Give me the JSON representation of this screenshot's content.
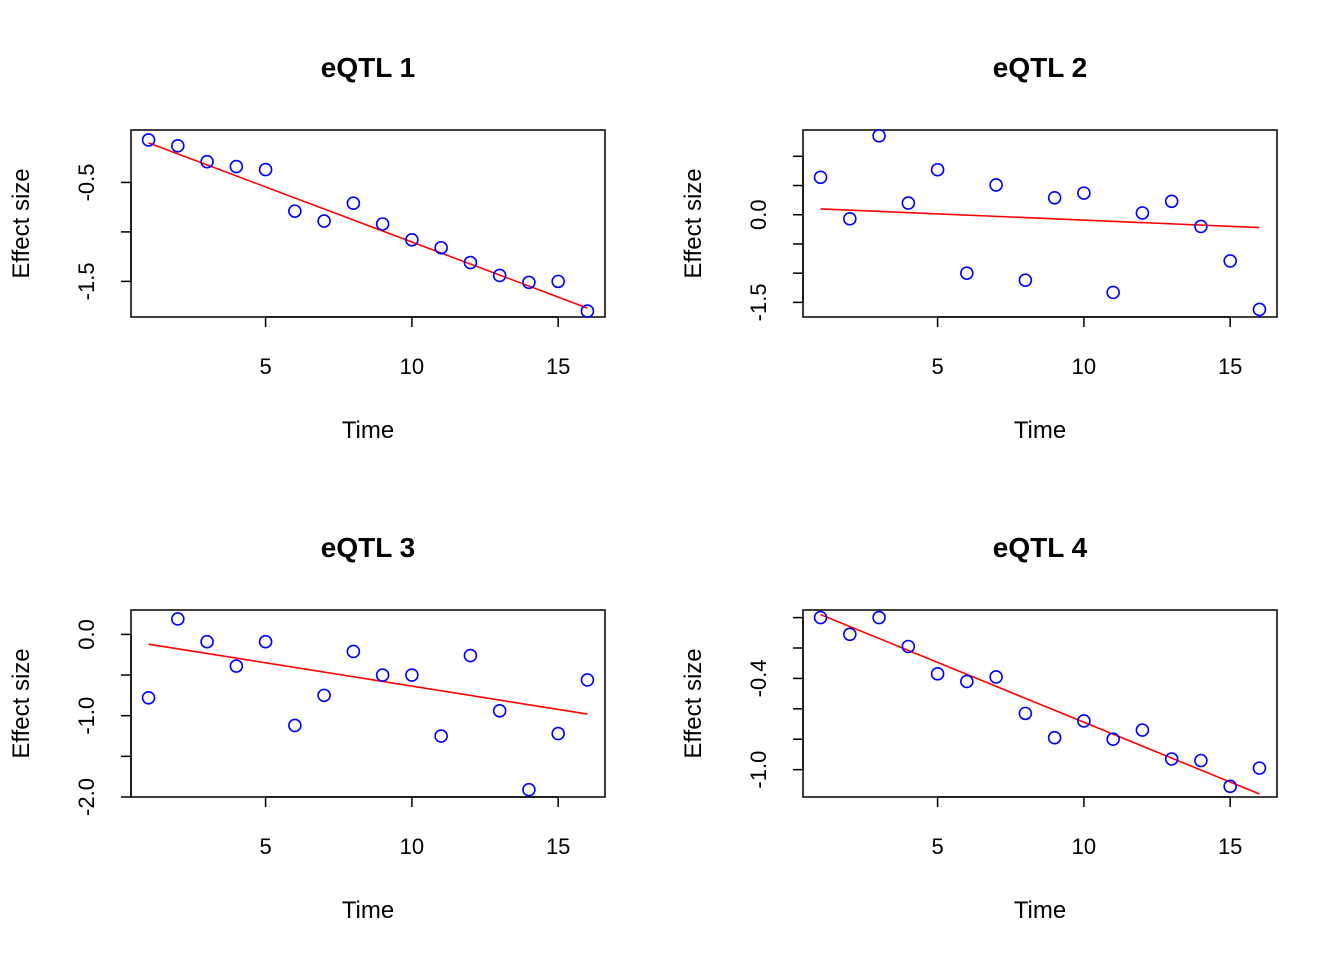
{
  "colors": {
    "points": "#0000ff",
    "fit_line": "#ff0000",
    "axes": "#000000"
  },
  "chart_data": [
    {
      "type": "scatter",
      "title": "eQTL 1",
      "xlabel": "Time",
      "ylabel": "Effect size",
      "xlim": [
        0.4,
        16.6
      ],
      "ylim": [
        -1.86,
        0.03
      ],
      "xticks": [
        5,
        10,
        15
      ],
      "xtick_labels": [
        "5",
        "10",
        "15"
      ],
      "yticks": [
        -0.5,
        -1.0,
        -1.5
      ],
      "ytick_labels": [
        "-0.5",
        "",
        "-1.5"
      ],
      "x": [
        1,
        2,
        3,
        4,
        5,
        6,
        7,
        8,
        9,
        10,
        11,
        12,
        13,
        14,
        15,
        16
      ],
      "y": [
        -0.07,
        -0.13,
        -0.29,
        -0.34,
        -0.37,
        -0.79,
        -0.89,
        -0.71,
        -0.92,
        -1.08,
        -1.16,
        -1.31,
        -1.44,
        -1.51,
        -1.5,
        -1.8
      ],
      "fit_line": {
        "x": [
          1,
          16
        ],
        "y": [
          -0.1,
          -1.77
        ]
      },
      "grid": false,
      "legend": "none"
    },
    {
      "type": "scatter",
      "title": "eQTL 2",
      "xlabel": "Time",
      "ylabel": "Effect size",
      "xlim": [
        0.4,
        16.6
      ],
      "ylim": [
        -1.75,
        1.45
      ],
      "xticks": [
        5,
        10,
        15
      ],
      "xtick_labels": [
        "5",
        "10",
        "15"
      ],
      "yticks": [
        1.0,
        0.5,
        0.0,
        -0.5,
        -1.0,
        -1.5
      ],
      "ytick_labels": [
        "",
        "",
        "0.0",
        "",
        "",
        "-1.5"
      ],
      "x": [
        1,
        2,
        3,
        4,
        5,
        6,
        7,
        8,
        9,
        10,
        11,
        12,
        13,
        14,
        15,
        16
      ],
      "y": [
        0.64,
        -0.07,
        1.35,
        0.2,
        0.77,
        -1.0,
        0.51,
        -1.12,
        0.29,
        0.37,
        -1.33,
        0.03,
        0.23,
        -0.2,
        -0.79,
        -1.62
      ],
      "fit_line": {
        "x": [
          1,
          16
        ],
        "y": [
          0.1,
          -0.22
        ]
      },
      "grid": false,
      "legend": "none"
    },
    {
      "type": "scatter",
      "title": "eQTL 3",
      "xlabel": "Time",
      "ylabel": "Effect size",
      "xlim": [
        0.4,
        16.6
      ],
      "ylim": [
        -2.0,
        0.3
      ],
      "xticks": [
        5,
        10,
        15
      ],
      "xtick_labels": [
        "5",
        "10",
        "15"
      ],
      "yticks": [
        0.0,
        -0.5,
        -1.0,
        -1.5,
        -2.0
      ],
      "ytick_labels": [
        "0.0",
        "",
        "-1.0",
        "",
        "-2.0"
      ],
      "x": [
        1,
        2,
        3,
        4,
        5,
        6,
        7,
        8,
        9,
        10,
        11,
        12,
        13,
        14,
        15,
        16
      ],
      "y": [
        -0.78,
        0.19,
        -0.09,
        -0.39,
        -0.09,
        -1.12,
        -0.75,
        -0.21,
        -0.5,
        -0.5,
        -1.25,
        -0.26,
        -0.94,
        -1.91,
        -1.22,
        -0.56
      ],
      "fit_line": {
        "x": [
          1,
          16
        ],
        "y": [
          -0.12,
          -0.98
        ]
      },
      "grid": false,
      "legend": "none"
    },
    {
      "type": "scatter",
      "title": "eQTL 4",
      "xlabel": "Time",
      "ylabel": "Effect size",
      "xlim": [
        0.4,
        16.6
      ],
      "ylim": [
        -1.18,
        0.05
      ],
      "xticks": [
        5,
        10,
        15
      ],
      "xtick_labels": [
        "5",
        "10",
        "15"
      ],
      "yticks": [
        0.0,
        -0.2,
        -0.4,
        -0.6,
        -0.8,
        -1.0
      ],
      "ytick_labels": [
        "",
        "",
        "-0.4",
        "",
        "",
        "-1.0"
      ],
      "x": [
        1,
        2,
        3,
        4,
        5,
        6,
        7,
        8,
        9,
        10,
        11,
        12,
        13,
        14,
        15,
        16
      ],
      "y": [
        0.0,
        -0.11,
        0.0,
        -0.19,
        -0.37,
        -0.42,
        -0.39,
        -0.63,
        -0.79,
        -0.68,
        -0.8,
        -0.74,
        -0.93,
        -0.94,
        -1.11,
        -0.99
      ],
      "fit_line": {
        "x": [
          1,
          16
        ],
        "y": [
          0.02,
          -1.16
        ]
      },
      "grid": false,
      "legend": "none"
    }
  ]
}
